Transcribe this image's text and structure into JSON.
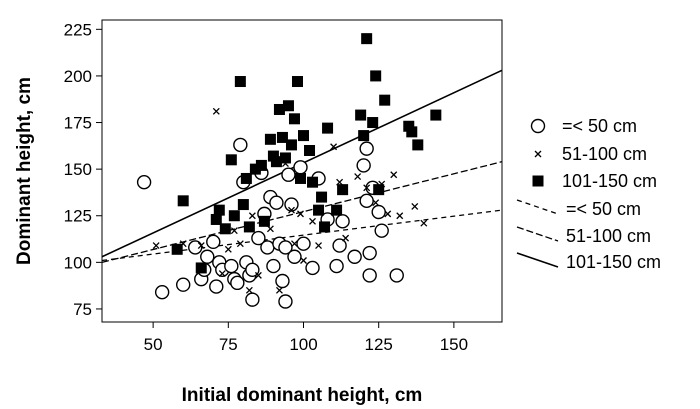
{
  "chart_data": {
    "type": "scatter",
    "title": "",
    "xlabel": "Initial dominant height, cm",
    "ylabel": "Dominant height, cm",
    "xlim": [
      33,
      166
    ],
    "ylim": [
      68,
      230
    ],
    "xticks": [
      50,
      75,
      100,
      125,
      150
    ],
    "yticks": [
      75,
      100,
      125,
      150,
      175,
      200,
      225
    ],
    "grid": false,
    "legend_position": "right",
    "series": [
      {
        "name": "=< 50 cm",
        "marker": "open-circle",
        "points": [
          [
            47,
            143
          ],
          [
            53,
            84
          ],
          [
            60,
            88
          ],
          [
            64,
            108
          ],
          [
            66,
            91
          ],
          [
            67,
            96
          ],
          [
            68,
            103
          ],
          [
            70,
            111
          ],
          [
            71,
            87
          ],
          [
            72,
            100
          ],
          [
            73,
            96
          ],
          [
            76,
            98
          ],
          [
            77,
            91
          ],
          [
            78,
            89
          ],
          [
            79,
            163
          ],
          [
            80,
            143
          ],
          [
            81,
            100
          ],
          [
            82,
            93
          ],
          [
            83,
            80
          ],
          [
            83,
            96
          ],
          [
            85,
            113
          ],
          [
            86,
            148
          ],
          [
            87,
            126
          ],
          [
            88,
            108
          ],
          [
            89,
            135
          ],
          [
            91,
            132
          ],
          [
            92,
            110
          ],
          [
            93,
            90
          ],
          [
            94,
            79
          ],
          [
            94,
            108
          ],
          [
            95,
            147
          ],
          [
            96,
            131
          ],
          [
            97,
            103
          ],
          [
            99,
            151
          ],
          [
            100,
            110
          ],
          [
            103,
            97
          ],
          [
            105,
            145
          ],
          [
            108,
            123
          ],
          [
            111,
            98
          ],
          [
            112,
            109
          ],
          [
            117,
            103
          ],
          [
            120,
            152
          ],
          [
            121,
            133
          ],
          [
            121,
            161
          ],
          [
            122,
            93
          ],
          [
            122,
            105
          ],
          [
            123,
            140
          ],
          [
            125,
            127
          ],
          [
            126,
            117
          ],
          [
            131,
            93
          ],
          [
            113,
            122
          ],
          [
            90,
            98
          ]
        ]
      },
      {
        "name": "51-100 cm",
        "marker": "x",
        "points": [
          [
            51,
            109
          ],
          [
            60,
            110
          ],
          [
            66,
            109
          ],
          [
            71,
            181
          ],
          [
            73,
            94
          ],
          [
            75,
            107
          ],
          [
            77,
            117
          ],
          [
            79,
            110
          ],
          [
            82,
            85
          ],
          [
            83,
            125
          ],
          [
            85,
            93
          ],
          [
            86,
            152
          ],
          [
            89,
            118
          ],
          [
            92,
            85
          ],
          [
            94,
            153
          ],
          [
            96,
            128
          ],
          [
            97,
            110
          ],
          [
            99,
            126
          ],
          [
            100,
            101
          ],
          [
            103,
            122
          ],
          [
            105,
            109
          ],
          [
            108,
            172
          ],
          [
            110,
            162
          ],
          [
            112,
            143
          ],
          [
            114,
            113
          ],
          [
            118,
            146
          ],
          [
            121,
            140
          ],
          [
            124,
            132
          ],
          [
            126,
            142
          ],
          [
            128,
            126
          ],
          [
            130,
            147
          ],
          [
            132,
            125
          ],
          [
            137,
            130
          ],
          [
            140,
            121
          ]
        ]
      },
      {
        "name": "101-150 cm",
        "marker": "filled-square",
        "points": [
          [
            58,
            107
          ],
          [
            60,
            133
          ],
          [
            66,
            97
          ],
          [
            71,
            123
          ],
          [
            72,
            128
          ],
          [
            74,
            118
          ],
          [
            76,
            155
          ],
          [
            77,
            125
          ],
          [
            79,
            197
          ],
          [
            80,
            131
          ],
          [
            81,
            145
          ],
          [
            82,
            119
          ],
          [
            84,
            150
          ],
          [
            86,
            152
          ],
          [
            87,
            122
          ],
          [
            89,
            166
          ],
          [
            90,
            157
          ],
          [
            91,
            154
          ],
          [
            92,
            182
          ],
          [
            93,
            167
          ],
          [
            94,
            156
          ],
          [
            95,
            184
          ],
          [
            96,
            163
          ],
          [
            97,
            177
          ],
          [
            98,
            197
          ],
          [
            99,
            145
          ],
          [
            100,
            168
          ],
          [
            102,
            160
          ],
          [
            103,
            143
          ],
          [
            105,
            128
          ],
          [
            106,
            135
          ],
          [
            107,
            119
          ],
          [
            108,
            172
          ],
          [
            111,
            128
          ],
          [
            113,
            139
          ],
          [
            119,
            179
          ],
          [
            120,
            168
          ],
          [
            121,
            220
          ],
          [
            123,
            175
          ],
          [
            124,
            200
          ],
          [
            125,
            139
          ],
          [
            127,
            187
          ],
          [
            135,
            173
          ],
          [
            136,
            170
          ],
          [
            138,
            163
          ],
          [
            144,
            179
          ]
        ]
      }
    ],
    "fit_lines": [
      {
        "name": "=< 50 cm",
        "style": "dashed-short",
        "x": [
          33,
          166
        ],
        "y": [
          101,
          128
        ]
      },
      {
        "name": "51-100 cm",
        "style": "dashed-long",
        "x": [
          33,
          166
        ],
        "y": [
          100,
          154
        ]
      },
      {
        "name": "101-150 cm",
        "style": "solid",
        "x": [
          33,
          166
        ],
        "y": [
          103,
          203
        ]
      }
    ]
  }
}
